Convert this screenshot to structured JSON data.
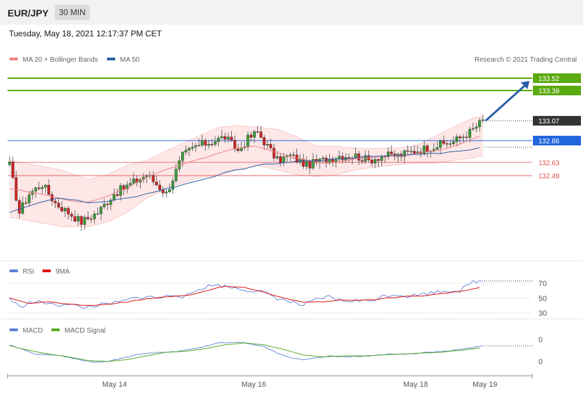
{
  "header": {
    "symbol": "EUR/JPY",
    "timeframe": "30 MIN",
    "datetime": "Tuesday, May 18, 2021 12:17:37 PM CET"
  },
  "credit": "Research © 2021 Trading Central",
  "legends": {
    "main": [
      {
        "label": "MA 20 + Bollinger Bands",
        "color": "#f08080"
      },
      {
        "label": "MA 50",
        "color": "#2d5fa8"
      }
    ],
    "rsi": [
      {
        "label": "RSI",
        "color": "#5b7fd6"
      },
      {
        "label": "9MA",
        "color": "#e01010"
      }
    ],
    "macd": [
      {
        "label": "MACD",
        "color": "#5b7fd6"
      },
      {
        "label": "MACD Signal",
        "color": "#55aa22"
      }
    ]
  },
  "colors": {
    "resistance": "#5aaa10",
    "pivot": "#2266dd",
    "support": "#e05050",
    "last": "#333333",
    "up": "#3a9a3a",
    "down": "#cc2222"
  },
  "chart_data": [
    {
      "type": "candlestick",
      "levels": [
        {
          "value": 133.52,
          "label": "133.52",
          "kind": "resistance"
        },
        {
          "value": 133.39,
          "label": "133.39",
          "kind": "resistance"
        },
        {
          "value": 133.07,
          "label": "133.07",
          "kind": "last"
        },
        {
          "value": 132.86,
          "label": "132.86",
          "kind": "pivot"
        },
        {
          "value": 132.63,
          "label": "132.63",
          "kind": "support"
        },
        {
          "value": 132.49,
          "label": "132.49",
          "kind": "support"
        }
      ],
      "ylim": [
        131.62,
        133.68
      ],
      "projection": {
        "from": 133.07,
        "to": 133.52
      },
      "x_ticks": [
        "May 14",
        "May 16",
        "May 18",
        "May 19"
      ],
      "close_path": [
        [
          0,
          132.6
        ],
        [
          3,
          132.1
        ],
        [
          6,
          132.3
        ],
        [
          10,
          132.4
        ],
        [
          14,
          132.2
        ],
        [
          18,
          132.1
        ],
        [
          22,
          132.0
        ],
        [
          27,
          132.1
        ],
        [
          32,
          132.3
        ],
        [
          37,
          132.4
        ],
        [
          42,
          132.5
        ],
        [
          48,
          132.3
        ],
        [
          53,
          132.7
        ],
        [
          57,
          132.8
        ],
        [
          62,
          132.85
        ],
        [
          66,
          132.9
        ],
        [
          70,
          132.75
        ],
        [
          73,
          132.88
        ],
        [
          76,
          132.95
        ],
        [
          79,
          132.8
        ],
        [
          82,
          132.65
        ],
        [
          86,
          132.7
        ],
        [
          91,
          132.6
        ],
        [
          96,
          132.65
        ],
        [
          101,
          132.7
        ],
        [
          106,
          132.7
        ],
        [
          110,
          132.65
        ],
        [
          114,
          132.7
        ],
        [
          119,
          132.7
        ],
        [
          124,
          132.75
        ],
        [
          130,
          132.8
        ],
        [
          136,
          132.85
        ],
        [
          141,
          132.95
        ],
        [
          145,
          133.07
        ]
      ],
      "ma20_path": [
        [
          0,
          132.35
        ],
        [
          8,
          132.3
        ],
        [
          16,
          132.25
        ],
        [
          24,
          132.2
        ],
        [
          30,
          132.28
        ],
        [
          36,
          132.35
        ],
        [
          42,
          132.48
        ],
        [
          48,
          132.55
        ],
        [
          56,
          132.65
        ],
        [
          64,
          132.72
        ],
        [
          70,
          132.78
        ],
        [
          76,
          132.8
        ],
        [
          82,
          132.72
        ],
        [
          88,
          132.68
        ],
        [
          94,
          132.62
        ],
        [
          100,
          132.63
        ],
        [
          106,
          132.66
        ],
        [
          112,
          132.68
        ],
        [
          118,
          132.7
        ],
        [
          124,
          132.72
        ],
        [
          130,
          132.75
        ],
        [
          136,
          132.8
        ],
        [
          142,
          132.88
        ],
        [
          145,
          132.92
        ]
      ],
      "ma50_path": [
        [
          0,
          132.1
        ],
        [
          8,
          132.2
        ],
        [
          16,
          132.26
        ],
        [
          24,
          132.2
        ],
        [
          30,
          132.22
        ],
        [
          36,
          132.25
        ],
        [
          42,
          132.3
        ],
        [
          48,
          132.35
        ],
        [
          56,
          132.42
        ],
        [
          64,
          132.5
        ],
        [
          70,
          132.55
        ],
        [
          76,
          132.6
        ],
        [
          82,
          132.62
        ],
        [
          88,
          132.64
        ],
        [
          94,
          132.65
        ],
        [
          100,
          132.66
        ],
        [
          106,
          132.68
        ],
        [
          112,
          132.7
        ],
        [
          118,
          132.7
        ],
        [
          124,
          132.72
        ],
        [
          130,
          132.72
        ],
        [
          136,
          132.74
        ],
        [
          142,
          132.77
        ],
        [
          145,
          132.79
        ]
      ],
      "bb_upper": [
        [
          0,
          132.65
        ],
        [
          8,
          132.6
        ],
        [
          16,
          132.55
        ],
        [
          24,
          132.45
        ],
        [
          30,
          132.5
        ],
        [
          36,
          132.6
        ],
        [
          42,
          132.65
        ],
        [
          48,
          132.75
        ],
        [
          56,
          132.88
        ],
        [
          64,
          133.0
        ],
        [
          70,
          133.02
        ],
        [
          76,
          133.0
        ],
        [
          82,
          132.98
        ],
        [
          88,
          132.9
        ],
        [
          94,
          132.8
        ],
        [
          100,
          132.8
        ],
        [
          106,
          132.78
        ],
        [
          112,
          132.78
        ],
        [
          118,
          132.78
        ],
        [
          124,
          132.8
        ],
        [
          130,
          132.9
        ],
        [
          136,
          133.0
        ],
        [
          142,
          133.1
        ],
        [
          145,
          133.12
        ]
      ],
      "bb_lower": [
        [
          0,
          132.05
        ],
        [
          8,
          132.0
        ],
        [
          16,
          131.95
        ],
        [
          24,
          131.95
        ],
        [
          30,
          132.0
        ],
        [
          36,
          132.1
        ],
        [
          42,
          132.25
        ],
        [
          48,
          132.35
        ],
        [
          56,
          132.45
        ],
        [
          64,
          132.5
        ],
        [
          70,
          132.55
        ],
        [
          76,
          132.6
        ],
        [
          82,
          132.55
        ],
        [
          88,
          132.5
        ],
        [
          94,
          132.48
        ],
        [
          100,
          132.5
        ],
        [
          106,
          132.55
        ],
        [
          112,
          132.58
        ],
        [
          118,
          132.6
        ],
        [
          124,
          132.62
        ],
        [
          130,
          132.62
        ],
        [
          136,
          132.65
        ],
        [
          142,
          132.68
        ],
        [
          145,
          132.7
        ]
      ]
    },
    {
      "type": "line",
      "title": "RSI",
      "ticks": [
        70,
        50,
        30
      ],
      "ylim": [
        25,
        82
      ],
      "rsi_path": [
        [
          0,
          50
        ],
        [
          3,
          38
        ],
        [
          6,
          44
        ],
        [
          10,
          45
        ],
        [
          14,
          40
        ],
        [
          18,
          43
        ],
        [
          22,
          37
        ],
        [
          26,
          40
        ],
        [
          30,
          42
        ],
        [
          34,
          45
        ],
        [
          38,
          50
        ],
        [
          42,
          52
        ],
        [
          46,
          50
        ],
        [
          50,
          55
        ],
        [
          54,
          52
        ],
        [
          58,
          62
        ],
        [
          62,
          68
        ],
        [
          66,
          66
        ],
        [
          70,
          63
        ],
        [
          74,
          60
        ],
        [
          78,
          58
        ],
        [
          82,
          50
        ],
        [
          86,
          45
        ],
        [
          90,
          40
        ],
        [
          94,
          48
        ],
        [
          98,
          52
        ],
        [
          102,
          46
        ],
        [
          106,
          47
        ],
        [
          110,
          46
        ],
        [
          114,
          52
        ],
        [
          118,
          55
        ],
        [
          122,
          53
        ],
        [
          126,
          55
        ],
        [
          130,
          58
        ],
        [
          134,
          60
        ],
        [
          138,
          60
        ],
        [
          142,
          72
        ],
        [
          145,
          73
        ]
      ],
      "ma9_path": [
        [
          0,
          50
        ],
        [
          6,
          43
        ],
        [
          12,
          45
        ],
        [
          18,
          42
        ],
        [
          24,
          40
        ],
        [
          30,
          42
        ],
        [
          36,
          45
        ],
        [
          42,
          49
        ],
        [
          48,
          52
        ],
        [
          54,
          53
        ],
        [
          60,
          60
        ],
        [
          66,
          66
        ],
        [
          72,
          64
        ],
        [
          78,
          58
        ],
        [
          84,
          50
        ],
        [
          90,
          45
        ],
        [
          96,
          45
        ],
        [
          102,
          48
        ],
        [
          108,
          47
        ],
        [
          114,
          49
        ],
        [
          120,
          52
        ],
        [
          126,
          53
        ],
        [
          132,
          56
        ],
        [
          138,
          59
        ],
        [
          142,
          62
        ],
        [
          145,
          65
        ]
      ]
    },
    {
      "type": "line",
      "title": "MACD",
      "ticks": [
        0,
        0
      ],
      "ylim": [
        -1,
        1
      ],
      "macd_path": [
        [
          0,
          0.45
        ],
        [
          4,
          0.2
        ],
        [
          8,
          -0.05
        ],
        [
          14,
          -0.1
        ],
        [
          20,
          -0.3
        ],
        [
          26,
          -0.5
        ],
        [
          30,
          -0.45
        ],
        [
          36,
          -0.2
        ],
        [
          40,
          -0.05
        ],
        [
          46,
          0.05
        ],
        [
          52,
          0.1
        ],
        [
          58,
          0.3
        ],
        [
          64,
          0.55
        ],
        [
          70,
          0.6
        ],
        [
          74,
          0.5
        ],
        [
          78,
          0.35
        ],
        [
          82,
          0.0
        ],
        [
          86,
          -0.25
        ],
        [
          90,
          -0.35
        ],
        [
          94,
          -0.25
        ],
        [
          98,
          -0.15
        ],
        [
          104,
          -0.2
        ],
        [
          110,
          -0.15
        ],
        [
          116,
          -0.05
        ],
        [
          122,
          -0.05
        ],
        [
          128,
          0.05
        ],
        [
          134,
          0.1
        ],
        [
          140,
          0.25
        ],
        [
          145,
          0.4
        ]
      ],
      "signal_path": [
        [
          0,
          0.4
        ],
        [
          6,
          0.15
        ],
        [
          12,
          -0.05
        ],
        [
          18,
          -0.2
        ],
        [
          24,
          -0.4
        ],
        [
          30,
          -0.45
        ],
        [
          36,
          -0.35
        ],
        [
          42,
          -0.15
        ],
        [
          48,
          0.05
        ],
        [
          54,
          0.1
        ],
        [
          60,
          0.25
        ],
        [
          66,
          0.45
        ],
        [
          72,
          0.55
        ],
        [
          78,
          0.45
        ],
        [
          84,
          0.2
        ],
        [
          90,
          -0.1
        ],
        [
          96,
          -0.2
        ],
        [
          102,
          -0.15
        ],
        [
          108,
          -0.15
        ],
        [
          114,
          -0.1
        ],
        [
          120,
          -0.05
        ],
        [
          126,
          0.0
        ],
        [
          132,
          0.05
        ],
        [
          138,
          0.15
        ],
        [
          145,
          0.3
        ]
      ]
    }
  ]
}
